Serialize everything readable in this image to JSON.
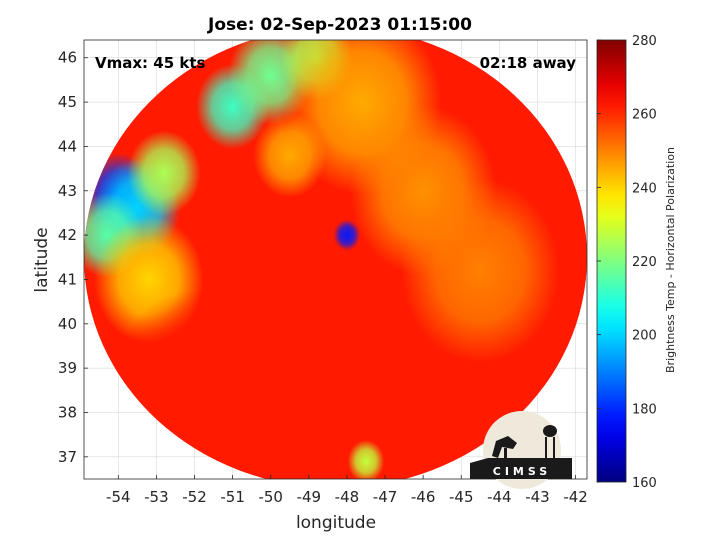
{
  "chart_data": {
    "type": "heatmap",
    "title": "Jose: 02-Sep-2023 01:15:00",
    "xlabel": "longitude",
    "ylabel": "latitude",
    "xlim": [
      -54.9,
      -41.7
    ],
    "ylim": [
      36.5,
      46.4
    ],
    "x_ticks": [
      -54,
      -53,
      -52,
      -51,
      -50,
      -49,
      -48,
      -47,
      -46,
      -45,
      -44,
      -43,
      -42
    ],
    "y_ticks": [
      37,
      38,
      39,
      40,
      41,
      42,
      43,
      44,
      45,
      46
    ],
    "grid": true,
    "annotations": {
      "vmax": "Vmax: 45 kts",
      "away": "02:18 away"
    },
    "colorbar": {
      "label": "Brightness Temp - Horizontal Polarization",
      "range": [
        160,
        280
      ],
      "ticks": [
        160,
        180,
        200,
        220,
        240,
        260,
        280
      ],
      "colormap": "jet"
    },
    "swath": {
      "center_lon": -48.3,
      "center_lat": 41.5,
      "radius_lon": 6.6,
      "radius_lat": 5.2
    },
    "background_temp": 262,
    "features": [
      {
        "lon": -54.0,
        "lat": 42.9,
        "r": 0.6,
        "temp": 182
      },
      {
        "lon": -53.5,
        "lat": 42.6,
        "r": 0.7,
        "temp": 200
      },
      {
        "lon": -54.3,
        "lat": 42.0,
        "r": 0.6,
        "temp": 215
      },
      {
        "lon": -52.8,
        "lat": 43.4,
        "r": 0.6,
        "temp": 225
      },
      {
        "lon": -51.0,
        "lat": 44.9,
        "r": 0.6,
        "temp": 212
      },
      {
        "lon": -50.0,
        "lat": 45.6,
        "r": 0.7,
        "temp": 218
      },
      {
        "lon": -48.8,
        "lat": 46.0,
        "r": 0.6,
        "temp": 225
      },
      {
        "lon": -48.0,
        "lat": 42.0,
        "r": 0.22,
        "temp": 178
      },
      {
        "lon": -47.6,
        "lat": 45.0,
        "r": 1.3,
        "temp": 245
      },
      {
        "lon": -46.0,
        "lat": 43.0,
        "r": 1.2,
        "temp": 248
      },
      {
        "lon": -53.2,
        "lat": 41.0,
        "r": 0.9,
        "temp": 240
      },
      {
        "lon": -44.5,
        "lat": 41.2,
        "r": 1.3,
        "temp": 250
      },
      {
        "lon": -52.0,
        "lat": 38.5,
        "r": 1.4,
        "temp": 262
      },
      {
        "lon": -47.5,
        "lat": 36.9,
        "r": 0.3,
        "temp": 228
      },
      {
        "lon": -49.5,
        "lat": 43.8,
        "r": 0.6,
        "temp": 245
      }
    ]
  },
  "logo": {
    "text": "CIMSS"
  },
  "colors": {
    "background": "#ffffff",
    "grid": "#d9d9d9",
    "axes": "#262626"
  }
}
